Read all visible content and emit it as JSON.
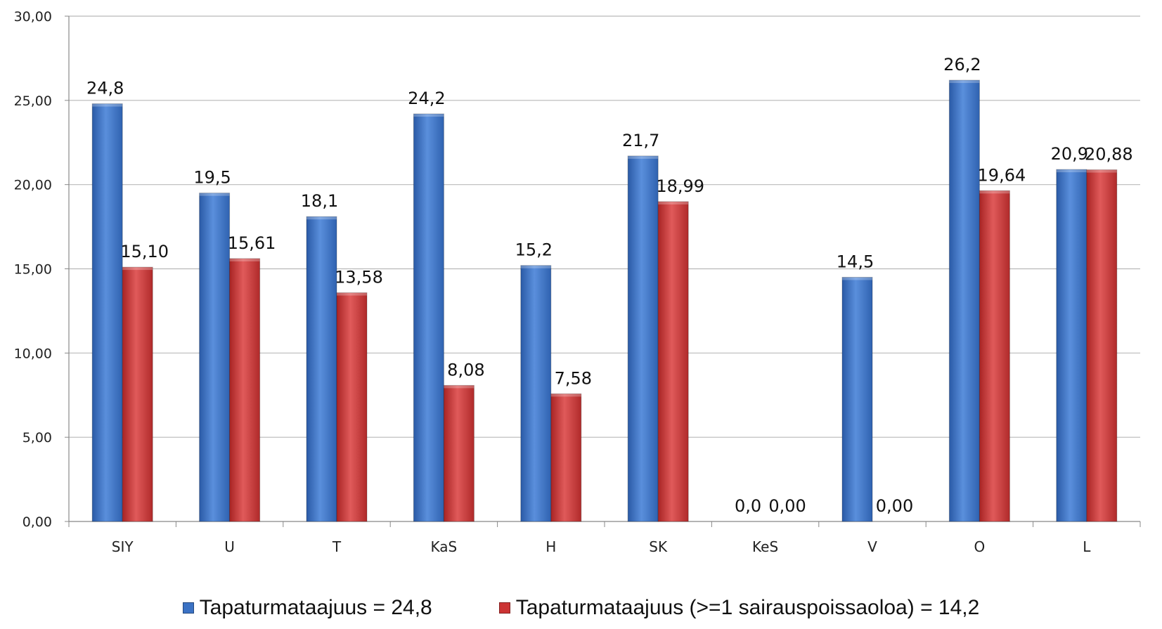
{
  "chart_data": {
    "type": "bar",
    "categories": [
      "SIY",
      "U",
      "T",
      "KaS",
      "H",
      "SK",
      "KeS",
      "V",
      "O",
      "L"
    ],
    "series": [
      {
        "name": "Tapaturmataajuus = 24,8",
        "color": "#3b72c4",
        "values": [
          24.8,
          19.5,
          18.1,
          24.2,
          15.2,
          21.7,
          0.0,
          14.5,
          26.2,
          20.9
        ],
        "labels": [
          "24,8",
          "19,5",
          "18,1",
          "24,2",
          "15,2",
          "21,7",
          "0,0",
          "14,5",
          "26,2",
          "20,9"
        ]
      },
      {
        "name": "Tapaturmataajuus (>=1 sairauspoissaoloa) = 14,2",
        "color": "#cc3434",
        "values": [
          15.1,
          15.61,
          13.58,
          8.08,
          7.58,
          18.99,
          0.0,
          0.0,
          19.64,
          20.88
        ],
        "labels": [
          "15,10",
          "15,61",
          "13,58",
          "8,08",
          "7,58",
          "18,99",
          "0,00",
          "0,00",
          "19,64",
          "20,88"
        ]
      }
    ],
    "y_ticks": [
      "0,00",
      "5,00",
      "10,00",
      "15,00",
      "20,00",
      "25,00",
      "30,00"
    ],
    "ylim": [
      0,
      30
    ],
    "grid": true,
    "legend_position": "bottom"
  }
}
